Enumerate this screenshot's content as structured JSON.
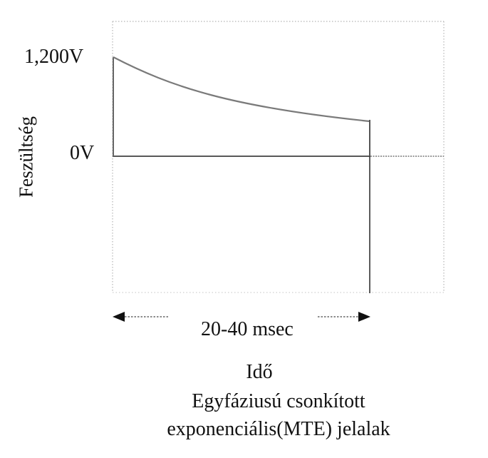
{
  "axes": {
    "y_tick_top": "1,200V",
    "y_tick_zero": "0V",
    "y_label": "Feszültség",
    "x_label": "Idő"
  },
  "annotation": {
    "duration": "20-40 msec"
  },
  "caption": {
    "line1": "Egyfáziusú csonkított",
    "line2": "exponenciális(MTE) jelalak"
  }
}
